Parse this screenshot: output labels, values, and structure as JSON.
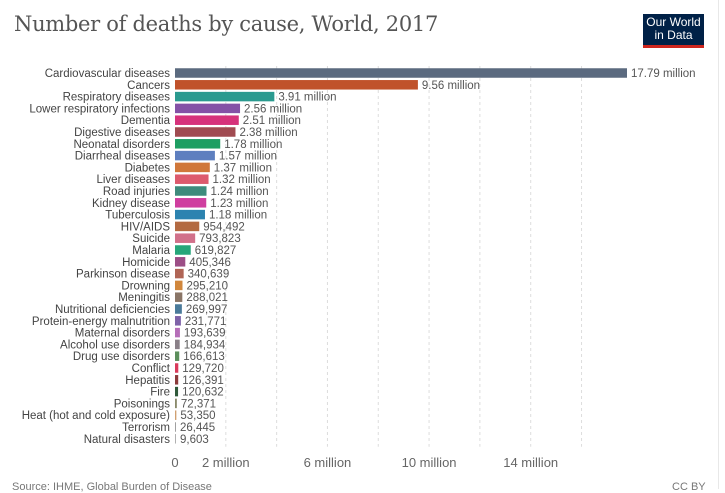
{
  "title": "Number of deaths by cause, World, 2017",
  "logo": {
    "line1": "Our World",
    "line2": "in Data"
  },
  "footer": {
    "source": "Source: IHME, Global Burden of Disease",
    "license": "CC BY"
  },
  "chart_data": {
    "type": "bar",
    "orientation": "horizontal",
    "title": "Number of deaths by cause, World, 2017",
    "xlim": [
      0,
      17.79
    ],
    "grid": true,
    "x_ticks": [
      0,
      2,
      6,
      10,
      14
    ],
    "x_tick_labels": [
      "0",
      "2 million",
      "6 million",
      "10 million",
      "14 million"
    ],
    "categories": [
      "Cardiovascular diseases",
      "Cancers",
      "Respiratory diseases",
      "Lower respiratory infections",
      "Dementia",
      "Digestive diseases",
      "Neonatal disorders",
      "Diarrheal diseases",
      "Diabetes",
      "Liver diseases",
      "Road injuries",
      "Kidney disease",
      "Tuberculosis",
      "HIV/AIDS",
      "Suicide",
      "Malaria",
      "Homicide",
      "Parkinson disease",
      "Drowning",
      "Meningitis",
      "Nutritional deficiencies",
      "Protein-energy malnutrition",
      "Maternal disorders",
      "Alcohol use disorders",
      "Drug use disorders",
      "Conflict",
      "Hepatitis",
      "Fire",
      "Poisonings",
      "Heat (hot and cold exposure)",
      "Terrorism",
      "Natural disasters"
    ],
    "values": [
      17790000,
      9560000,
      3910000,
      2560000,
      2510000,
      2380000,
      1780000,
      1570000,
      1370000,
      1320000,
      1240000,
      1230000,
      1180000,
      954492,
      793823,
      619827,
      405346,
      340639,
      295210,
      288021,
      269997,
      231771,
      193639,
      184934,
      166613,
      129720,
      126391,
      120632,
      72371,
      53350,
      26445,
      9603
    ],
    "value_labels": [
      "17.79 million",
      "9.56 million",
      "3.91 million",
      "2.56 million",
      "2.51 million",
      "2.38 million",
      "1.78 million",
      "1.57 million",
      "1.37 million",
      "1.32 million",
      "1.24 million",
      "1.23 million",
      "1.18 million",
      "954,492",
      "793,823",
      "619,827",
      "405,346",
      "340,639",
      "295,210",
      "288,021",
      "269,997",
      "231,771",
      "193,639",
      "184,934",
      "166,613",
      "129,720",
      "126,391",
      "120,632",
      "72,371",
      "53,350",
      "26,445",
      "9,603"
    ],
    "colors": [
      "#5b6a7f",
      "#c0522b",
      "#2a9a8f",
      "#8451a6",
      "#d6327b",
      "#a04b51",
      "#1e9e62",
      "#5e7fbf",
      "#d0773a",
      "#dd5a6d",
      "#3e8b7c",
      "#cf3e9f",
      "#2c83b0",
      "#b36a42",
      "#d1708a",
      "#26a67a",
      "#9c4e86",
      "#b06556",
      "#d1873c",
      "#8a7566",
      "#4a7a9a",
      "#7e62a8",
      "#b56eb8",
      "#8a8088",
      "#5c8f5c",
      "#d93a5a",
      "#8a3a3a",
      "#2f5a3a",
      "#8a8a6a",
      "#d0a070",
      "#a0a0a0",
      "#b0b0b0"
    ]
  }
}
